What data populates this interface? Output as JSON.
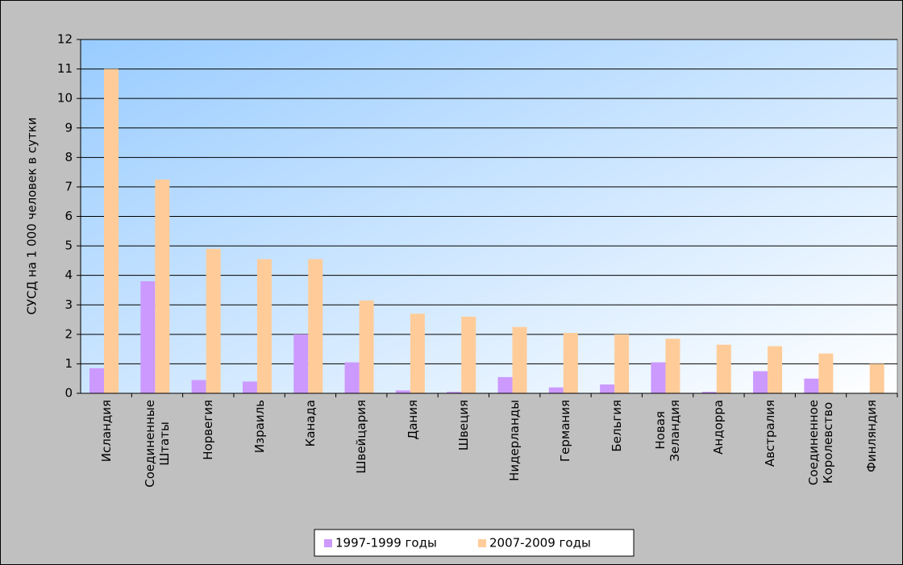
{
  "chart_data": {
    "type": "bar",
    "ylabel": "СУСД на 1 000 человек в сутки",
    "categories": [
      "Исландия",
      "Соединенные\nШтаты",
      "Норвегия",
      "Израиль",
      "Канада",
      "Швейцария",
      "Дания",
      "Швеция",
      "Нидерланды",
      "Германия",
      "Бельгия",
      "Новая\nЗеландия",
      "Андорра",
      "Австралия",
      "Соединенное\nКоролевство",
      "Финляндия"
    ],
    "series": [
      {
        "name": "1997-1999 годы",
        "color": "#cc99ff",
        "values": [
          0.85,
          3.8,
          0.45,
          0.4,
          2.0,
          1.05,
          0.1,
          0.05,
          0.55,
          0.2,
          0.3,
          1.05,
          0.05,
          0.75,
          0.5,
          null
        ]
      },
      {
        "name": "2007-2009 годы",
        "color": "#ffcc99",
        "values": [
          11.0,
          7.25,
          4.9,
          4.55,
          4.55,
          3.15,
          2.7,
          2.6,
          2.25,
          2.05,
          2.0,
          1.85,
          1.65,
          1.6,
          1.35,
          1.0
        ]
      }
    ],
    "ylim": [
      0,
      12
    ],
    "yticks": [
      0,
      1,
      2,
      3,
      4,
      5,
      6,
      7,
      8,
      9,
      10,
      11,
      12
    ],
    "grid": true,
    "legend": "bottom"
  }
}
